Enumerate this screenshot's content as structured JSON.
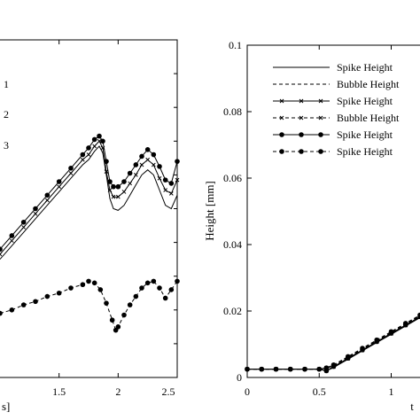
{
  "chart_data": [
    {
      "type": "line",
      "panel": "left",
      "xlabel_fragment": "s]",
      "x_ticks": [
        "1.5",
        "2",
        "2.5"
      ],
      "xlim": [
        1.0,
        2.5
      ],
      "ylim": [
        0,
        1
      ],
      "series_markers": [
        "1",
        "2",
        "3"
      ],
      "series": [
        {
          "marker": "none",
          "x": [
            1.0,
            1.1,
            1.2,
            1.3,
            1.4,
            1.5,
            1.6,
            1.7,
            1.75,
            1.8,
            1.84,
            1.87,
            1.9,
            1.93,
            1.96,
            2.0,
            2.05,
            2.1,
            2.15,
            2.2,
            2.25,
            2.3,
            2.35,
            2.4,
            2.45,
            2.5
          ],
          "y": [
            0.35,
            0.39,
            0.43,
            0.47,
            0.51,
            0.55,
            0.59,
            0.63,
            0.645,
            0.67,
            0.685,
            0.665,
            0.6,
            0.53,
            0.5,
            0.495,
            0.51,
            0.54,
            0.57,
            0.6,
            0.615,
            0.6,
            0.555,
            0.51,
            0.5,
            0.54
          ]
        },
        {
          "marker": "x",
          "x": [
            1.0,
            1.1,
            1.2,
            1.3,
            1.4,
            1.5,
            1.6,
            1.7,
            1.75,
            1.8,
            1.84,
            1.87,
            1.9,
            1.93,
            1.96,
            2.0,
            2.05,
            2.1,
            2.15,
            2.2,
            2.25,
            2.3,
            2.35,
            2.4,
            2.45,
            2.5
          ],
          "y": [
            0.365,
            0.405,
            0.445,
            0.485,
            0.525,
            0.565,
            0.605,
            0.645,
            0.66,
            0.685,
            0.7,
            0.68,
            0.61,
            0.555,
            0.535,
            0.535,
            0.55,
            0.575,
            0.6,
            0.63,
            0.645,
            0.63,
            0.59,
            0.555,
            0.545,
            0.585
          ]
        },
        {
          "marker": "dot",
          "x": [
            1.0,
            1.1,
            1.2,
            1.3,
            1.4,
            1.5,
            1.6,
            1.7,
            1.75,
            1.8,
            1.84,
            1.87,
            1.9,
            1.93,
            1.96,
            2.0,
            2.05,
            2.1,
            2.15,
            2.2,
            2.25,
            2.3,
            2.35,
            2.4,
            2.45,
            2.5
          ],
          "y": [
            0.38,
            0.42,
            0.46,
            0.5,
            0.54,
            0.58,
            0.62,
            0.66,
            0.68,
            0.705,
            0.715,
            0.7,
            0.64,
            0.58,
            0.565,
            0.565,
            0.58,
            0.605,
            0.63,
            0.655,
            0.675,
            0.66,
            0.625,
            0.585,
            0.575,
            0.64
          ]
        },
        {
          "marker": "dot-dashed",
          "x": [
            1.0,
            1.1,
            1.2,
            1.3,
            1.4,
            1.5,
            1.6,
            1.7,
            1.75,
            1.8,
            1.85,
            1.9,
            1.95,
            1.98,
            2.0,
            2.05,
            2.1,
            2.15,
            2.2,
            2.25,
            2.3,
            2.35,
            2.4,
            2.45,
            2.5
          ],
          "y": [
            0.19,
            0.2,
            0.215,
            0.225,
            0.24,
            0.25,
            0.265,
            0.275,
            0.285,
            0.28,
            0.26,
            0.22,
            0.17,
            0.14,
            0.15,
            0.185,
            0.215,
            0.24,
            0.265,
            0.28,
            0.285,
            0.265,
            0.235,
            0.26,
            0.285
          ]
        }
      ]
    },
    {
      "type": "line",
      "panel": "right",
      "xlabel_fragment": "t",
      "ylabel": "Height [mm]",
      "x_ticks": [
        "0",
        "0.5",
        "1"
      ],
      "y_ticks": [
        "0",
        "0.02",
        "0.04",
        "0.06",
        "0.08",
        "0.1"
      ],
      "xlim": [
        0,
        1.2
      ],
      "ylim": [
        0,
        0.1
      ],
      "legend_position": "top-right",
      "series": [
        {
          "name": "Spike Height",
          "style": "solid",
          "marker": "none",
          "x": [
            0,
            0.1,
            0.2,
            0.3,
            0.4,
            0.5,
            0.55,
            0.6,
            0.7,
            0.8,
            0.9,
            1.0,
            1.1,
            1.2
          ],
          "y": [
            0.0025,
            0.0025,
            0.0025,
            0.0025,
            0.0025,
            0.0025,
            0.002,
            0.003,
            0.0055,
            0.008,
            0.0105,
            0.013,
            0.0155,
            0.018
          ]
        },
        {
          "name": "Bubble Height",
          "style": "dashed",
          "marker": "none",
          "x": [
            0,
            0.1,
            0.2,
            0.3,
            0.4,
            0.5,
            0.55,
            0.6,
            0.7,
            0.8,
            0.9,
            1.0,
            1.1,
            1.2
          ],
          "y": [
            0.0025,
            0.0025,
            0.0025,
            0.0025,
            0.0025,
            0.0025,
            0.0028,
            0.0035,
            0.006,
            0.0085,
            0.011,
            0.0135,
            0.016,
            0.0185
          ]
        },
        {
          "name": "Spike Height",
          "style": "solid",
          "marker": "x",
          "x": [
            0,
            0.1,
            0.2,
            0.3,
            0.4,
            0.5,
            0.55,
            0.6,
            0.7,
            0.8,
            0.9,
            1.0,
            1.1,
            1.2
          ],
          "y": [
            0.0025,
            0.0025,
            0.0025,
            0.0025,
            0.0025,
            0.0025,
            0.002,
            0.0032,
            0.0057,
            0.0082,
            0.0107,
            0.0132,
            0.0157,
            0.0182
          ]
        },
        {
          "name": "Bubble Height",
          "style": "dashed",
          "marker": "x",
          "x": [
            0,
            0.1,
            0.2,
            0.3,
            0.4,
            0.5,
            0.55,
            0.6,
            0.7,
            0.8,
            0.9,
            1.0,
            1.1,
            1.2
          ],
          "y": [
            0.0025,
            0.0025,
            0.0025,
            0.0025,
            0.0025,
            0.0025,
            0.0029,
            0.0037,
            0.0062,
            0.0087,
            0.0112,
            0.0137,
            0.0162,
            0.0187
          ]
        },
        {
          "name": "Spike Height",
          "style": "solid",
          "marker": "dot",
          "x": [
            0,
            0.1,
            0.2,
            0.3,
            0.4,
            0.5,
            0.55,
            0.6,
            0.7,
            0.8,
            0.9,
            1.0,
            1.1,
            1.2
          ],
          "y": [
            0.0025,
            0.0025,
            0.0025,
            0.0025,
            0.0025,
            0.0025,
            0.002,
            0.0033,
            0.0058,
            0.0083,
            0.0108,
            0.0133,
            0.0158,
            0.0183
          ]
        },
        {
          "name": "Spike Height",
          "style": "dashed",
          "marker": "dot",
          "x": [
            0,
            0.1,
            0.2,
            0.3,
            0.4,
            0.5,
            0.55,
            0.6,
            0.7,
            0.8,
            0.9,
            1.0,
            1.1,
            1.2
          ],
          "y": [
            0.0025,
            0.0025,
            0.0025,
            0.0025,
            0.0025,
            0.0025,
            0.0029,
            0.0038,
            0.0063,
            0.0088,
            0.0113,
            0.0138,
            0.0163,
            0.0188
          ]
        }
      ]
    }
  ]
}
